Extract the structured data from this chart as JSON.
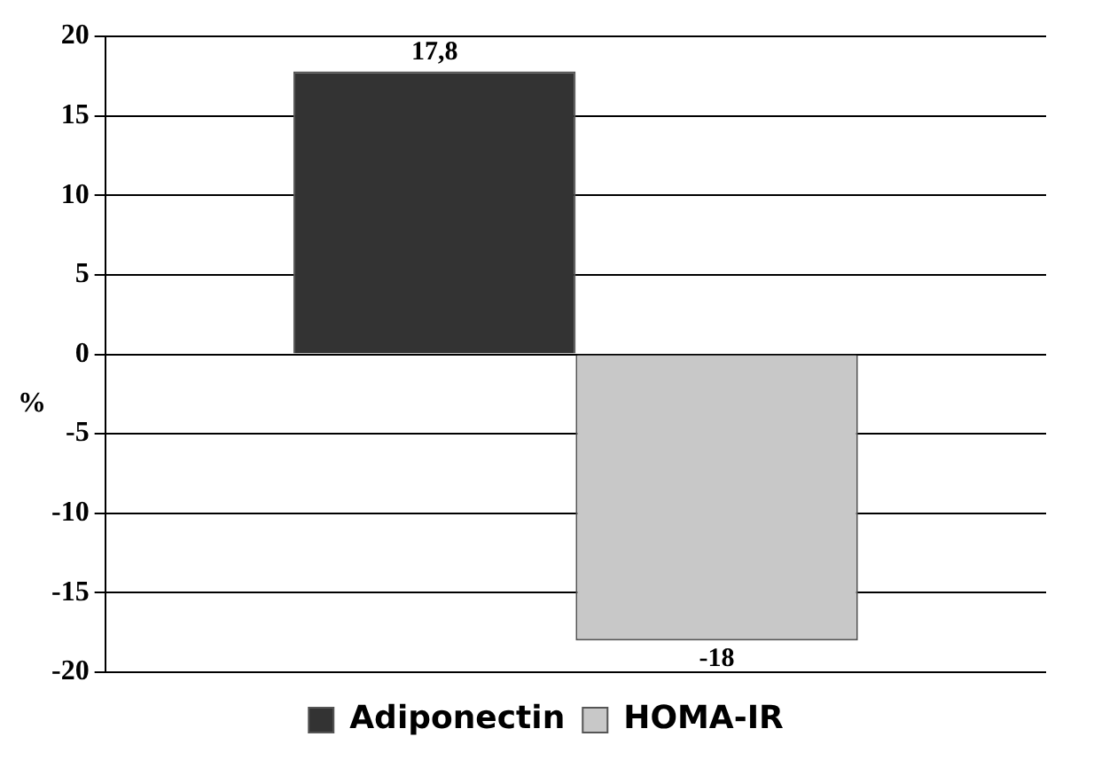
{
  "chart_data": {
    "type": "bar",
    "ylabel": "%",
    "categories": [
      null
    ],
    "series": [
      {
        "name": "Adiponectin",
        "color": "#333333",
        "values": [
          17.8
        ],
        "value_labels": [
          "17,8"
        ]
      },
      {
        "name": "HOMA-IR",
        "color": "#c8c8c8",
        "values": [
          -18
        ],
        "value_labels": [
          "-18"
        ]
      }
    ],
    "ylim": [
      -20,
      20
    ],
    "yticks": [
      -20,
      -15,
      -10,
      -5,
      0,
      5,
      10,
      15,
      20
    ],
    "grid": "y",
    "legend": "bottom",
    "tick_labels": "y"
  }
}
